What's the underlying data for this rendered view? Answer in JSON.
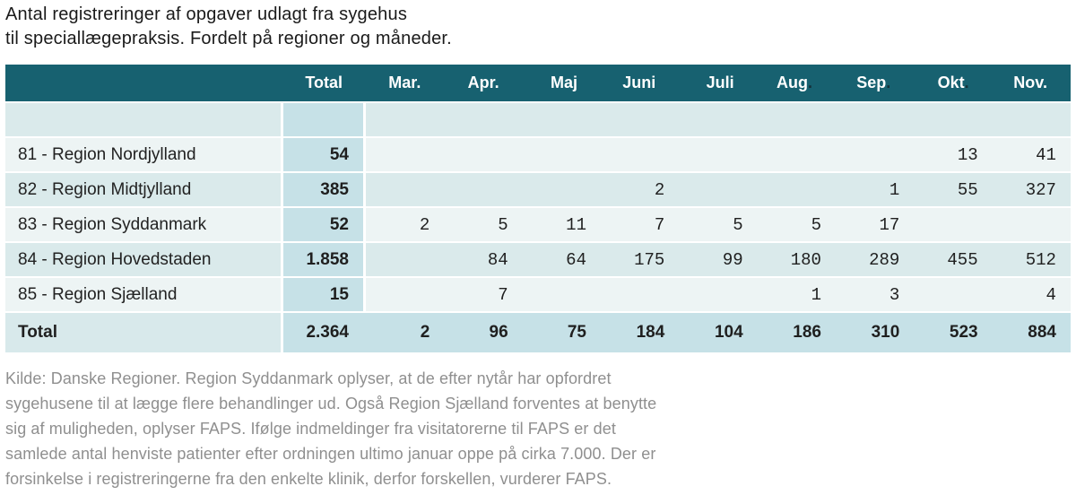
{
  "chart_data": {
    "type": "table",
    "title_lines": [
      "Antal registreringer af opgaver udlagt fra sygehus",
      "til speciallægepraksis. Fordelt på regioner og måneder."
    ],
    "columns": {
      "region": "",
      "total": "Total",
      "months": [
        {
          "label": "Mar.",
          "dark_dot": ""
        },
        {
          "label": "Apr.",
          "dark_dot": ""
        },
        {
          "label": "Maj",
          "dark_dot": ""
        },
        {
          "label": "Juni",
          "dark_dot": ""
        },
        {
          "label": "Juli",
          "dark_dot": ""
        },
        {
          "label": "Aug",
          "dark_dot": "."
        },
        {
          "label": "Sep",
          "dark_dot": "."
        },
        {
          "label": "Okt",
          "dark_dot": "."
        },
        {
          "label": "Nov.",
          "dark_dot": ""
        }
      ]
    },
    "rows": [
      {
        "region": "",
        "total": "",
        "months": [
          "",
          "",
          "",
          "",
          "",
          "",
          "",
          "",
          ""
        ]
      },
      {
        "region": "81 - Region Nordjylland",
        "total": "54",
        "months": [
          "",
          "",
          "",
          "",
          "",
          "",
          "",
          "13",
          "41"
        ]
      },
      {
        "region": "82 - Region Midtjylland",
        "total": "385",
        "months": [
          "",
          "",
          "",
          "2",
          "",
          "",
          "1",
          "55",
          "327"
        ]
      },
      {
        "region": "83 - Region Syddanmark",
        "total": "52",
        "months": [
          "2",
          "5",
          "11",
          "7",
          "5",
          "5",
          "17",
          "",
          ""
        ]
      },
      {
        "region": "84 - Region Hovedstaden",
        "total": "1.858",
        "months": [
          "",
          "84",
          "64",
          "175",
          "99",
          "180",
          "289",
          "455",
          "512"
        ]
      },
      {
        "region": "85 - Region Sjælland",
        "total": "15",
        "months": [
          "",
          "7",
          "",
          "",
          "",
          "1",
          "3",
          "",
          "4"
        ]
      }
    ],
    "total_row": {
      "region": "Total",
      "total": "2.364",
      "months": [
        "2",
        "96",
        "75",
        "184",
        "104",
        "186",
        "310",
        "523",
        "884"
      ]
    },
    "footer_lines": [
      "Kilde: Danske Regioner. Region Syddanmark oplyser, at de efter nytår har opfordret",
      "sygehusene til at lægge flere behandlinger ud. Også Region Sjælland forventes at benytte",
      "sig af muligheden, oplyser FAPS. Ifølge indmeldinger fra visitatorerne til FAPS er det",
      "samlede antal henviste patienter efter ordningen ultimo januar oppe på cirka 7.000. Der er",
      "forsinkelse i registreringerne fra den enkelte klinik, derfor forskellen, vurderer FAPS."
    ]
  },
  "colors": {
    "header_bg": "#176170",
    "header_text": "#ffffff",
    "row_light": "#edf4f4",
    "row_dark": "#daeaeb",
    "total_col_bg": "#c6e1e7",
    "total_row_label_bg": "#d8e9eb",
    "body_text": "#1f1f1f",
    "footer_text": "#8f8f8f",
    "dark_period": "#143038"
  }
}
